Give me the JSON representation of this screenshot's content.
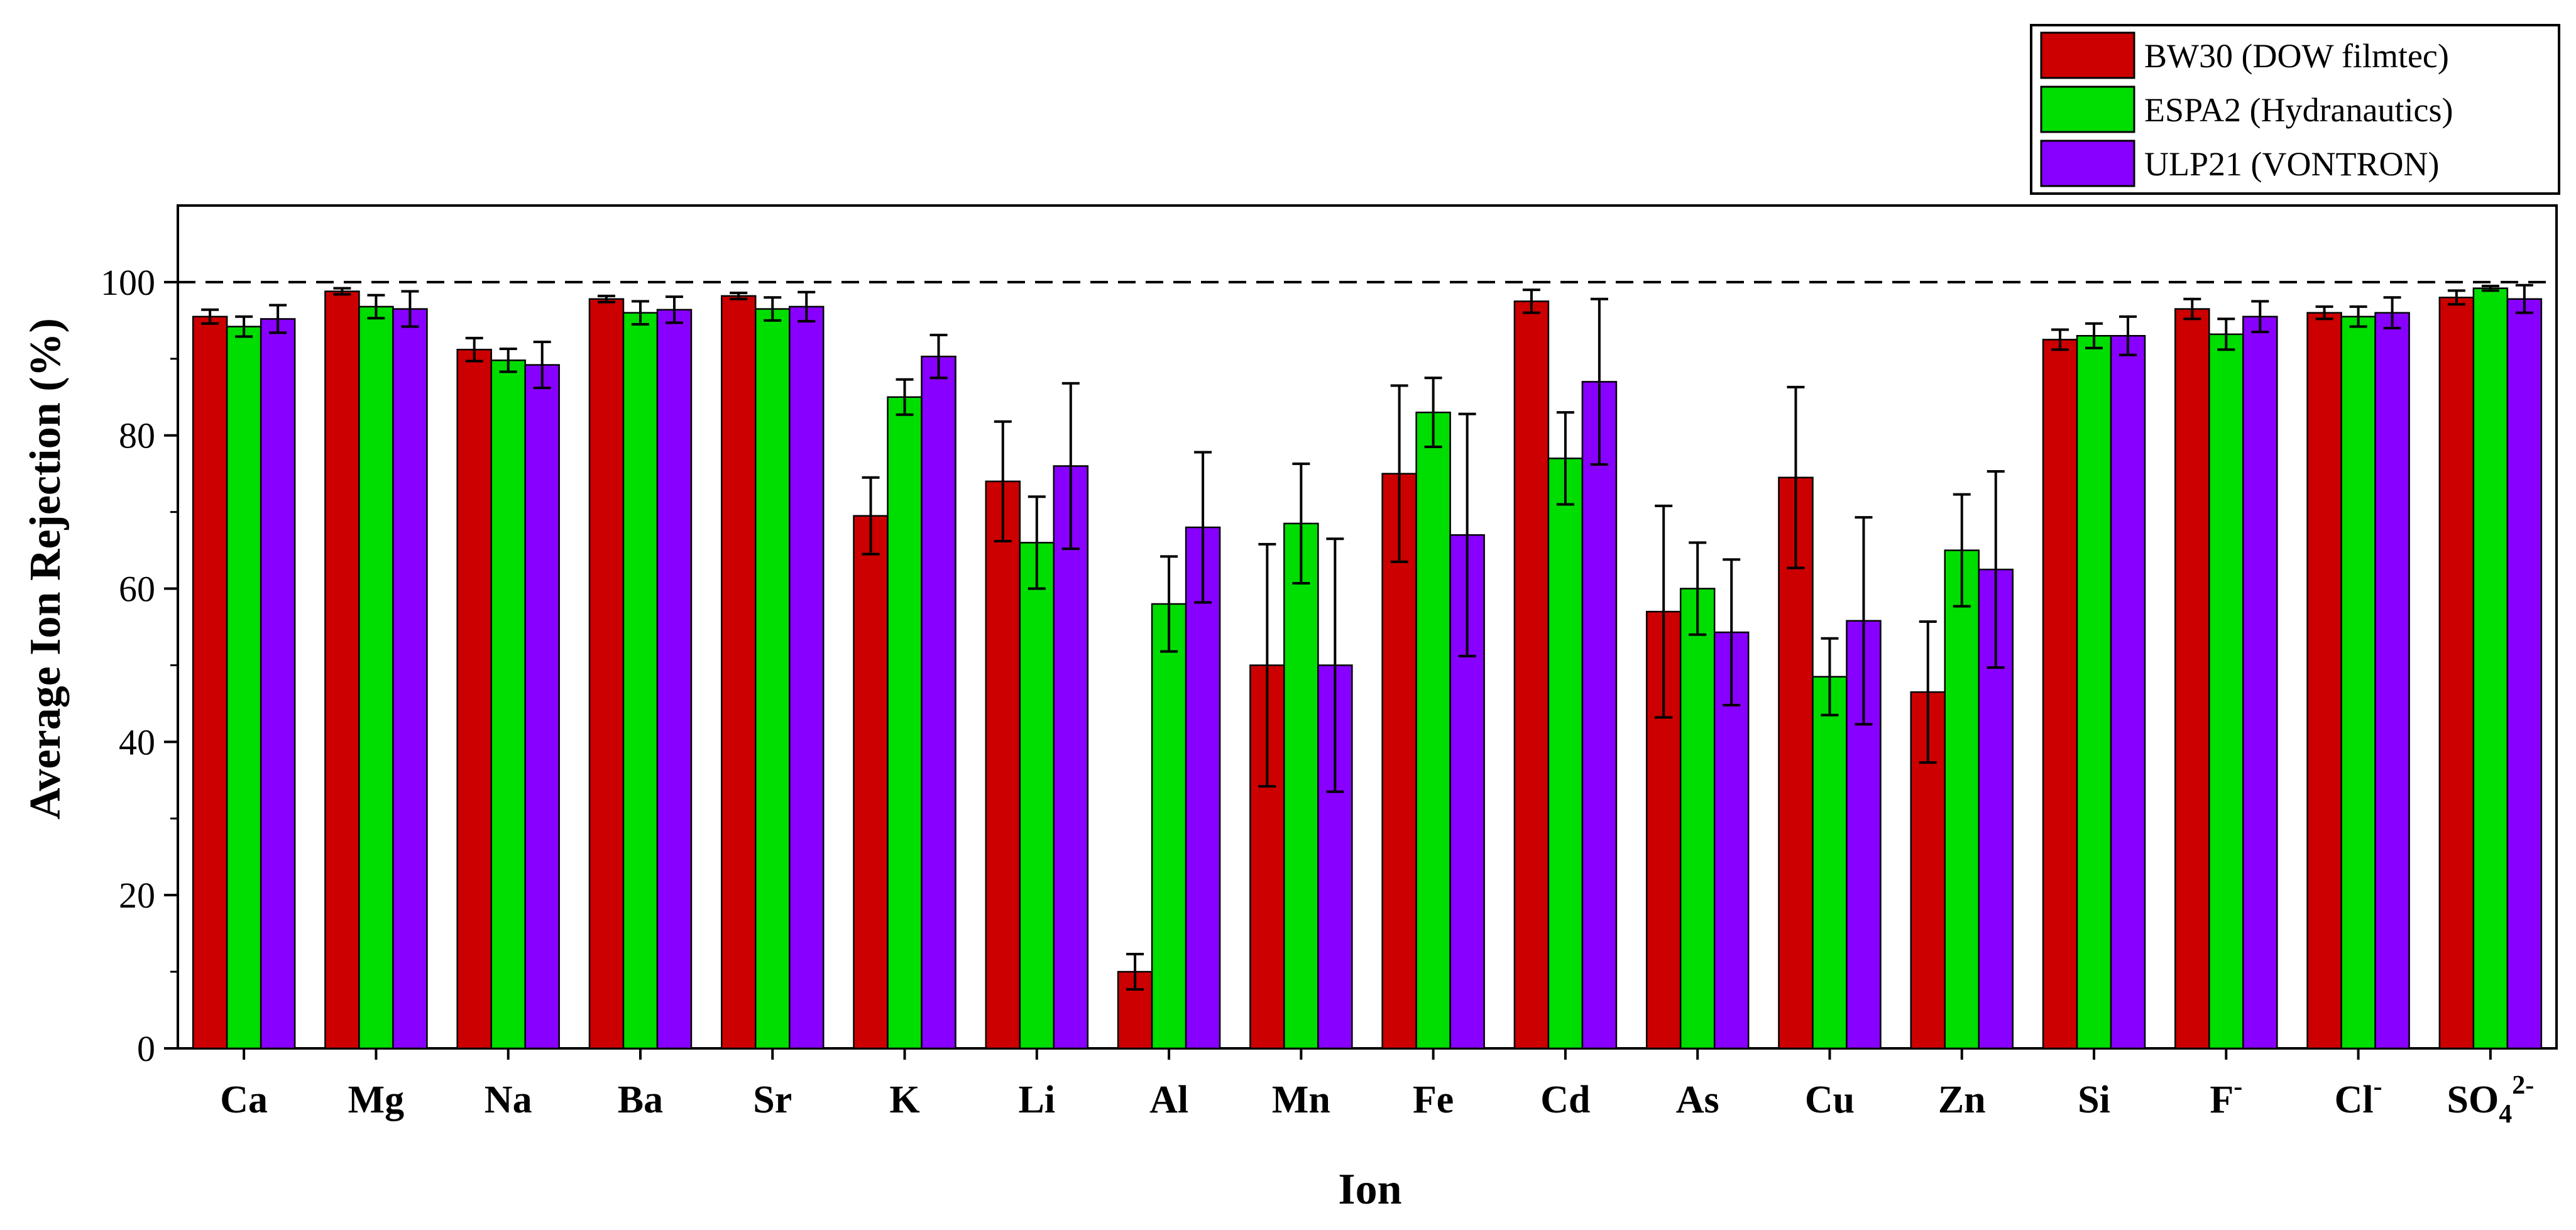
{
  "chart_data": {
    "type": "bar",
    "title": "",
    "xlabel": "Ion",
    "ylabel": "Average Ion Rejection (%)",
    "ylim": [
      0,
      110
    ],
    "yticks": [
      0,
      20,
      40,
      60,
      80,
      100
    ],
    "reference_line": 100,
    "legend_position": "top-right",
    "categories": [
      "Ca",
      "Mg",
      "Na",
      "Ba",
      "Sr",
      "K",
      "Li",
      "Al",
      "Mn",
      "Fe",
      "Cd",
      "As",
      "Cu",
      "Zn",
      "Si",
      "F",
      "Cl",
      "SO"
    ],
    "category_superscripts": [
      "",
      "",
      "",
      "",
      "",
      "",
      "",
      "",
      "",
      "",
      "",
      "",
      "",
      "",
      "",
      "-",
      "-",
      "2-"
    ],
    "category_subscripts": [
      "",
      "",
      "",
      "",
      "",
      "",
      "",
      "",
      "",
      "",
      "",
      "",
      "",
      "",
      "",
      "",
      "",
      "4"
    ],
    "series": [
      {
        "name": "BW30 (DOW filmtec)",
        "color": "#cc0000",
        "values": [
          95.5,
          98.8,
          91.2,
          97.8,
          98.2,
          69.5,
          74.0,
          10.0,
          50.0,
          75.0,
          97.5,
          57.0,
          74.5,
          46.5,
          92.5,
          96.5,
          96.0,
          98.0
        ],
        "errors": [
          0.9,
          0.4,
          1.5,
          0.4,
          0.4,
          5.0,
          7.8,
          2.3,
          15.8,
          11.5,
          1.5,
          13.8,
          11.8,
          9.2,
          1.3,
          1.3,
          0.8,
          0.9
        ]
      },
      {
        "name": "ESPA2 (Hydranautics)",
        "color": "#00dd00",
        "values": [
          94.2,
          96.8,
          89.8,
          96.0,
          96.5,
          85.0,
          66.0,
          58.0,
          68.5,
          83.0,
          77.0,
          60.0,
          48.5,
          65.0,
          93.0,
          93.2,
          95.5,
          99.2
        ],
        "errors": [
          1.3,
          1.5,
          1.5,
          1.5,
          1.5,
          2.3,
          6.0,
          6.2,
          7.8,
          4.5,
          6.0,
          6.0,
          5.0,
          7.3,
          1.6,
          2.0,
          1.3,
          0.3
        ]
      },
      {
        "name": "ULP21 (VONTRON)",
        "color": "#8800ff",
        "values": [
          95.2,
          96.5,
          89.2,
          96.4,
          96.8,
          90.3,
          76.0,
          68.0,
          50.0,
          67.0,
          87.0,
          54.3,
          55.8,
          62.5,
          93.0,
          95.5,
          96.0,
          97.8
        ],
        "errors": [
          1.8,
          2.3,
          3.0,
          1.7,
          1.9,
          2.8,
          10.8,
          9.8,
          16.5,
          15.8,
          10.8,
          9.5,
          13.5,
          12.8,
          2.5,
          2.0,
          2.0,
          1.8
        ]
      }
    ]
  }
}
